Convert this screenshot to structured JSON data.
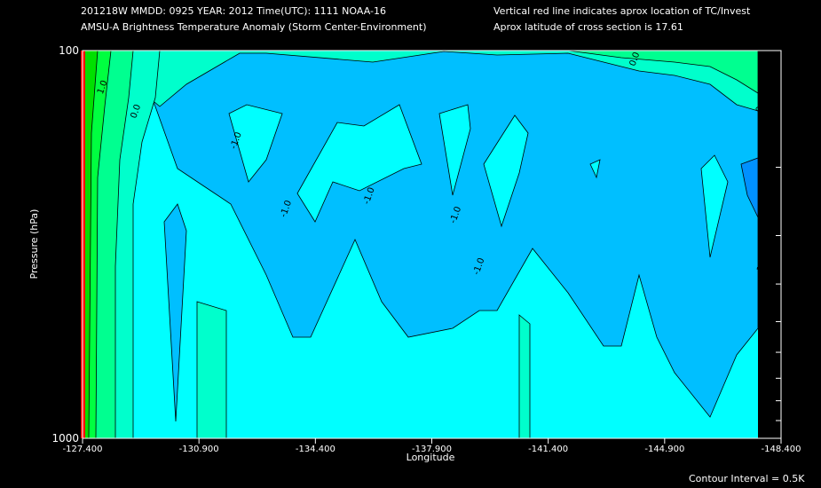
{
  "header": {
    "line1_left": "201218W  MMDD: 0925 YEAR: 2012 Time(UTC): 1111 NOAA-16",
    "line2_left": "AMSU-A Brightness Temperature Anomaly (Storm Center-Environment)",
    "line1_right": "Vertical red line indicates aprox location of TC/Invest",
    "line2_right": "Aprox latitude of cross section is 17.61"
  },
  "footer": {
    "contour_interval": "Contour Interval = 0.5K"
  },
  "chart_data": {
    "type": "contour",
    "title": "AMSU-A Brightness Temperature Anomaly (Storm Center-Environment)",
    "xlabel": "Longitude",
    "ylabel": "Pressure (hPa)",
    "xlim": [
      -127.4,
      -148.4
    ],
    "ylim": [
      1000,
      100
    ],
    "y_scale": "log",
    "x_ticks": [
      "-127.400",
      "-130.900",
      "-134.400",
      "-137.900",
      "-141.400",
      "-144.900",
      "-148.400"
    ],
    "y_ticks": [
      "100",
      "1000"
    ],
    "contour_interval_K": 0.5,
    "contour_labels": [
      {
        "text": "1.0",
        "lon": -128.0,
        "p": 130
      },
      {
        "text": "0.0",
        "lon": -129.0,
        "p": 150
      },
      {
        "text": "-1.0",
        "lon": -132.0,
        "p": 180
      },
      {
        "text": "-1.0",
        "lon": -133.5,
        "p": 270
      },
      {
        "text": "-1.0",
        "lon": -136.0,
        "p": 250
      },
      {
        "text": "-1.0",
        "lon": -138.6,
        "p": 280
      },
      {
        "text": "-1.0",
        "lon": -139.3,
        "p": 380
      },
      {
        "text": "0.0",
        "lon": -144.0,
        "p": 110
      },
      {
        "text": "-1.0",
        "lon": -147.8,
        "p": 380
      },
      {
        "text": "-1.0",
        "lon": -148.0,
        "p": 290
      },
      {
        "text": "1.0",
        "lon": -147.9,
        "p": 120
      },
      {
        "text": "0.0",
        "lon": -147.8,
        "p": 145
      }
    ],
    "levels": [
      {
        "value": 3.0,
        "color": "#00c000"
      },
      {
        "value": 2.0,
        "color": "#00e000"
      },
      {
        "value": 1.0,
        "color": "#00ff40"
      },
      {
        "value": 0.5,
        "color": "#00ff90"
      },
      {
        "value": 0.0,
        "color": "#00ffcc"
      },
      {
        "value": -0.5,
        "color": "#00ffff"
      },
      {
        "value": -1.0,
        "color": "#00bfff"
      },
      {
        "value": -1.5,
        "color": "#0090ff"
      }
    ],
    "tc_marker_lon": -127.4,
    "tc_marker_color": "#ff0000"
  }
}
